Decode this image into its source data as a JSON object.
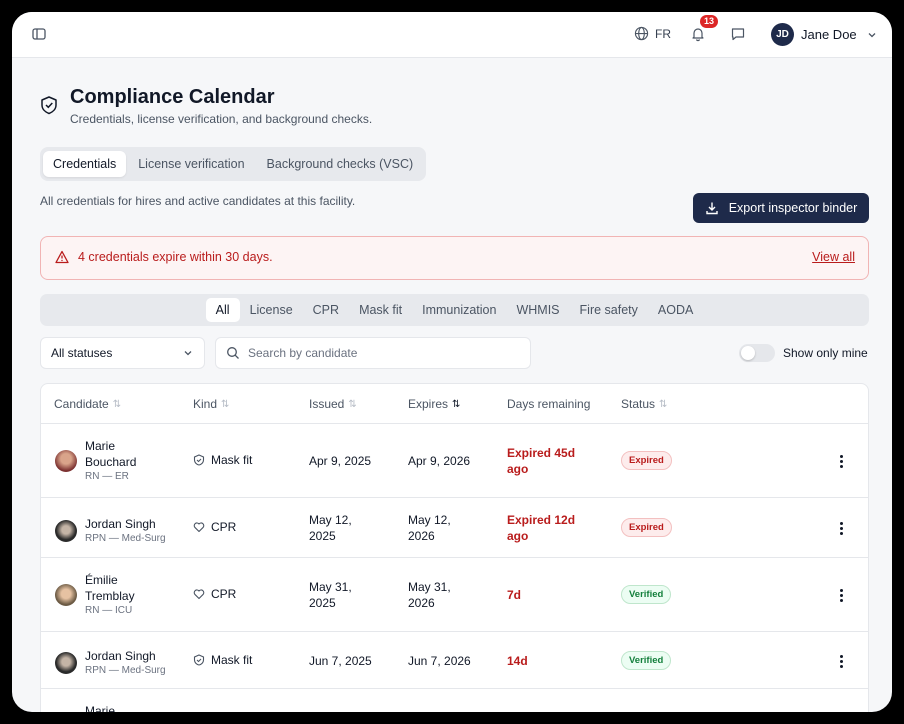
{
  "header": {
    "language": "FR",
    "notifications_count": "13",
    "user_initials": "JD",
    "user_name": "Jane Doe"
  },
  "page": {
    "title": "Compliance Calendar",
    "subtitle": "Credentials, license verification, and background checks.",
    "tabs": [
      "Credentials",
      "License verification",
      "Background checks (VSC)"
    ],
    "active_tab": "Credentials",
    "description": "All credentials for hires and active candidates at this facility.",
    "export_label": "Export inspector binder"
  },
  "alert": {
    "text": "4 credentials expire within 30 days.",
    "link": "View all"
  },
  "filters": {
    "kinds": [
      "All",
      "License",
      "CPR",
      "Mask fit",
      "Immunization",
      "WHMIS",
      "Fire safety",
      "AODA"
    ],
    "active_kind": "All",
    "status_select": "All statuses",
    "search_placeholder": "Search by candidate",
    "toggle_label": "Show only mine"
  },
  "table": {
    "columns": [
      "Candidate",
      "Kind",
      "Issued",
      "Expires",
      "Days remaining",
      "Status"
    ],
    "rows": [
      {
        "name1": "Marie",
        "name2": "Bouchard",
        "role": "RN — ER",
        "kind": "Mask fit",
        "issued1": "Apr 9, 2025",
        "issued2": "",
        "expires1": "Apr 9, 2026",
        "expires2": "",
        "days1": "Expired 45d",
        "days2": "ago",
        "status": "Expired"
      },
      {
        "name1": "Jordan Singh",
        "name2": "",
        "role": "RPN — Med-Surg",
        "kind": "CPR",
        "issued1": "May 12,",
        "issued2": "2025",
        "expires1": "May 12,",
        "expires2": "2026",
        "days1": "Expired 12d",
        "days2": "ago",
        "status": "Expired"
      },
      {
        "name1": "Émilie",
        "name2": "Tremblay",
        "role": "RN — ICU",
        "kind": "CPR",
        "issued1": "May 31,",
        "issued2": "2025",
        "expires1": "May 31,",
        "expires2": "2026",
        "days1": "7d",
        "days2": "",
        "status": "Verified"
      },
      {
        "name1": "Jordan Singh",
        "name2": "",
        "role": "RPN — Med-Surg",
        "kind": "Mask fit",
        "issued1": "Jun 7, 2025",
        "issued2": "",
        "expires1": "Jun 7, 2026",
        "expires2": "",
        "days1": "14d",
        "days2": "",
        "status": "Verified"
      },
      {
        "name1": "Marie",
        "name2": "",
        "role": "",
        "kind": "",
        "issued1": "",
        "issued2": "",
        "expires1": "",
        "expires2": "",
        "days1": "",
        "days2": "",
        "status": ""
      }
    ]
  }
}
